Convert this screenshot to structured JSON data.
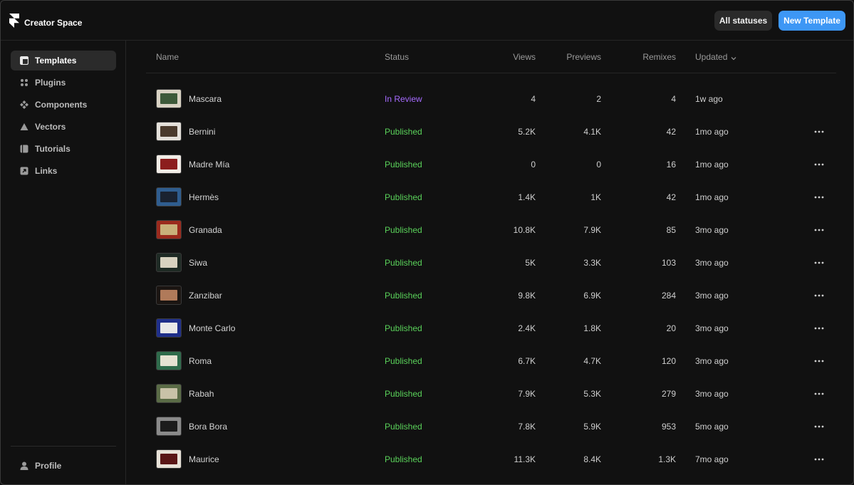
{
  "app": {
    "title": "Creator Space",
    "logo_icon": "framer-logo-icon"
  },
  "toolbar": {
    "statuses_label": "All statuses",
    "new_template_label": "New Template"
  },
  "sidebar": {
    "items": [
      {
        "label": "Templates",
        "icon": "template-icon",
        "active": true
      },
      {
        "label": "Plugins",
        "icon": "plugin-icon",
        "active": false
      },
      {
        "label": "Components",
        "icon": "component-icon",
        "active": false
      },
      {
        "label": "Vectors",
        "icon": "vector-icon",
        "active": false
      },
      {
        "label": "Tutorials",
        "icon": "tutorial-icon",
        "active": false
      },
      {
        "label": "Links",
        "icon": "link-icon",
        "active": false
      }
    ],
    "profile_label": "Profile"
  },
  "table": {
    "columns": {
      "name": "Name",
      "status": "Status",
      "views": "Views",
      "previews": "Previews",
      "remixes": "Remixes",
      "updated": "Updated"
    },
    "rows": [
      {
        "name": "Mascara",
        "status": "In Review",
        "views": "4",
        "previews": "2",
        "remixes": "4",
        "updated": "1w ago",
        "thumb_bg": "#d9d3c4",
        "thumb_fg": "#3d5a3a",
        "has_menu": false
      },
      {
        "name": "Bernini",
        "status": "Published",
        "views": "5.2K",
        "previews": "4.1K",
        "remixes": "42",
        "updated": "1mo ago",
        "thumb_bg": "#e4e0da",
        "thumb_fg": "#4a3a2c",
        "has_menu": true
      },
      {
        "name": "Madre Mía",
        "status": "Published",
        "views": "0",
        "previews": "0",
        "remixes": "16",
        "updated": "1mo ago",
        "thumb_bg": "#f1ece6",
        "thumb_fg": "#8c1d1d",
        "has_menu": true
      },
      {
        "name": "Hermès",
        "status": "Published",
        "views": "1.4K",
        "previews": "1K",
        "remixes": "42",
        "updated": "1mo ago",
        "thumb_bg": "#2f5d8f",
        "thumb_fg": "#1a2230",
        "has_menu": true
      },
      {
        "name": "Granada",
        "status": "Published",
        "views": "10.8K",
        "previews": "7.9K",
        "remixes": "85",
        "updated": "3mo ago",
        "thumb_bg": "#9b2a1d",
        "thumb_fg": "#c9b07a",
        "has_menu": true
      },
      {
        "name": "Siwa",
        "status": "Published",
        "views": "5K",
        "previews": "3.3K",
        "remixes": "103",
        "updated": "3mo ago",
        "thumb_bg": "#1e2a24",
        "thumb_fg": "#d8d2c0",
        "has_menu": true
      },
      {
        "name": "Zanzibar",
        "status": "Published",
        "views": "9.8K",
        "previews": "6.9K",
        "remixes": "284",
        "updated": "3mo ago",
        "thumb_bg": "#1b1512",
        "thumb_fg": "#b07a5a",
        "has_menu": true
      },
      {
        "name": "Monte Carlo",
        "status": "Published",
        "views": "2.4K",
        "previews": "1.8K",
        "remixes": "20",
        "updated": "3mo ago",
        "thumb_bg": "#1f2f8a",
        "thumb_fg": "#e8e8e8",
        "has_menu": true
      },
      {
        "name": "Roma",
        "status": "Published",
        "views": "6.7K",
        "previews": "4.7K",
        "remixes": "120",
        "updated": "3mo ago",
        "thumb_bg": "#2f6b4b",
        "thumb_fg": "#e6e2d2",
        "has_menu": true
      },
      {
        "name": "Rabah",
        "status": "Published",
        "views": "7.9K",
        "previews": "5.3K",
        "remixes": "279",
        "updated": "3mo ago",
        "thumb_bg": "#5a6b46",
        "thumb_fg": "#c9c2a8",
        "has_menu": true
      },
      {
        "name": "Bora Bora",
        "status": "Published",
        "views": "7.8K",
        "previews": "5.9K",
        "remixes": "953",
        "updated": "5mo ago",
        "thumb_bg": "#8a8a8a",
        "thumb_fg": "#1c1c1c",
        "has_menu": true
      },
      {
        "name": "Maurice",
        "status": "Published",
        "views": "11.3K",
        "previews": "8.4K",
        "remixes": "1.3K",
        "updated": "7mo ago",
        "thumb_bg": "#e8e2d8",
        "thumb_fg": "#5a1616",
        "has_menu": true
      }
    ]
  },
  "colors": {
    "accent": "#3d97f5",
    "published": "#5ad25a",
    "in_review": "#a66bff"
  }
}
